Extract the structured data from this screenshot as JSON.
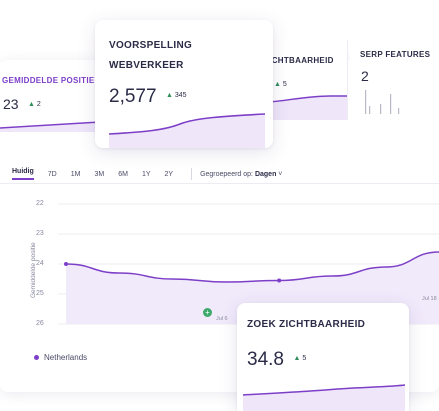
{
  "kpi_top": [
    {
      "label": "Gemiddelde positie",
      "value": "23",
      "delta": "2"
    },
    {
      "label": "Zichtbaarheid",
      "value": "",
      "delta": "5"
    },
    {
      "label": "SERP features",
      "value": "2",
      "delta": ""
    }
  ],
  "forecast_card": {
    "title_line1": "Voorspelling",
    "title_line2": "Webverkeer",
    "value": "2,577",
    "delta": "345"
  },
  "main": {
    "tabs": [
      "Huidig",
      "7D",
      "1M",
      "3M",
      "6M",
      "1Y",
      "2Y"
    ],
    "active_tab": "Huidig",
    "group_label": "Gegroepeerd op:",
    "group_value": "Dagen",
    "legend_label": "Netherlands"
  },
  "visibility_card": {
    "title": "Zoek zichtbaarheid",
    "value": "34.8",
    "delta": "5"
  },
  "chart_data": {
    "type": "line",
    "ylabel": "Gemiddelde positie",
    "y_ticks": [
      "22",
      "23",
      "24",
      "25",
      "26"
    ],
    "ylim": [
      26,
      22
    ],
    "x_ticks": [
      "Jul 6",
      "Jul 18"
    ],
    "series": [
      {
        "name": "Netherlands",
        "values": [
          24.0,
          24.3,
          24.5,
          24.6,
          24.55,
          24.4,
          24.1,
          23.6
        ]
      }
    ],
    "color": "#7d3fc7"
  },
  "colors": {
    "accent": "#7d3fc7",
    "positive": "#2f8f5a"
  },
  "icons": {
    "trend_up": "triangle-up-icon",
    "legend": "legend-dot-icon",
    "marker": "add-annotation-icon"
  }
}
